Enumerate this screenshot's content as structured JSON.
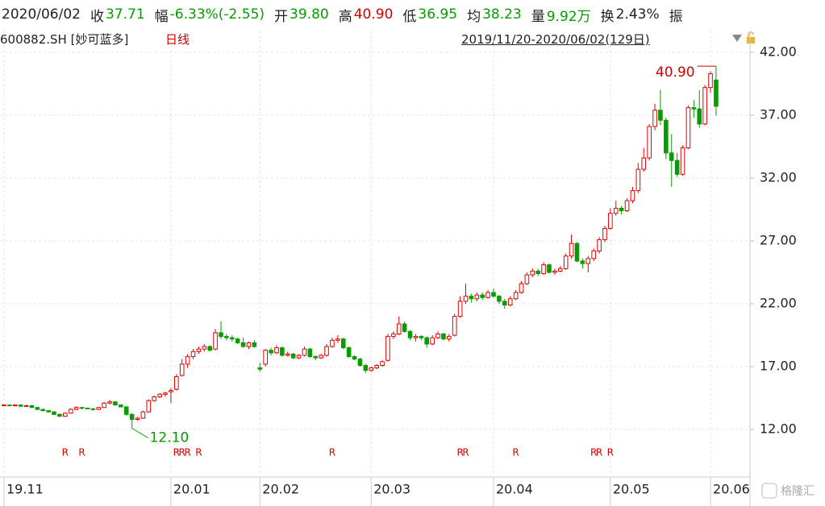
{
  "header": {
    "date": "2020/06/02",
    "items": [
      {
        "label": "收",
        "value": "37.71",
        "color": "#079c00"
      },
      {
        "label": "幅",
        "value": "-6.33%(-2.55)",
        "color": "#079c00"
      },
      {
        "label": "开",
        "value": "39.80",
        "color": "#079c00"
      },
      {
        "label": "高",
        "value": "40.90",
        "color": "#d40000"
      },
      {
        "label": "低",
        "value": "36.95",
        "color": "#079c00"
      },
      {
        "label": "均",
        "value": "38.23",
        "color": "#079c00"
      },
      {
        "label": "量",
        "value": "9.92万",
        "color": "#079c00"
      },
      {
        "label": "换",
        "value": "2.43%",
        "color": "#222222"
      },
      {
        "label": "振",
        "value": "",
        "color": "#222222"
      }
    ]
  },
  "stock": {
    "code": "600882.SH [妙可蓝多]",
    "period": "日线",
    "range": "2019/11/20-2020/06/02(129日)"
  },
  "watermark": "格隆汇",
  "chart_data": {
    "type": "candlestick",
    "up_color": "#e60000",
    "down_color": "#079c00",
    "xlim": [
      -0.72,
      134.1
    ],
    "ylim": [
      8.35,
      43.73
    ],
    "xticks": [
      {
        "value": 0,
        "label": "19.11"
      },
      {
        "value": 30,
        "label": "20.01"
      },
      {
        "value": 46,
        "label": "20.02"
      },
      {
        "value": 66,
        "label": "20.03"
      },
      {
        "value": 88,
        "label": "20.04"
      },
      {
        "value": 109,
        "label": "20.05"
      },
      {
        "value": 127,
        "label": "20.06"
      }
    ],
    "yticks": [
      {
        "value": 12,
        "label": "12.00"
      },
      {
        "value": 17,
        "label": "17.00"
      },
      {
        "value": 22,
        "label": "22.00"
      },
      {
        "value": 27,
        "label": "27.00"
      },
      {
        "value": 32,
        "label": "32.00"
      },
      {
        "value": 37,
        "label": "37.00"
      },
      {
        "value": 42,
        "label": "42.00"
      }
    ],
    "grid": true,
    "annotations": [
      {
        "label": "40.90",
        "x": 128,
        "value": 40.9,
        "color": "#d40000"
      },
      {
        "label": "12.10",
        "x": 23,
        "value": 12.1,
        "color": "#079c00"
      }
    ],
    "markers": {
      "label": "R",
      "x": [
        11,
        14,
        31,
        32,
        33,
        35,
        59,
        82,
        83,
        92,
        106,
        107,
        109
      ]
    },
    "candles": [
      [
        13.9,
        14.0,
        13.85,
        13.95
      ],
      [
        13.95,
        14.0,
        13.85,
        13.9
      ],
      [
        13.9,
        14.0,
        13.85,
        13.95
      ],
      [
        13.95,
        14.0,
        13.8,
        13.85
      ],
      [
        13.85,
        13.95,
        13.8,
        13.9
      ],
      [
        13.9,
        13.95,
        13.7,
        13.75
      ],
      [
        13.75,
        13.8,
        13.55,
        13.6
      ],
      [
        13.6,
        13.65,
        13.45,
        13.5
      ],
      [
        13.5,
        13.55,
        13.35,
        13.4
      ],
      [
        13.4,
        13.45,
        13.15,
        13.2
      ],
      [
        13.2,
        13.3,
        13.0,
        13.05
      ],
      [
        13.05,
        13.35,
        13.0,
        13.3
      ],
      [
        13.3,
        13.7,
        13.25,
        13.6
      ],
      [
        13.6,
        13.85,
        13.55,
        13.75
      ],
      [
        13.75,
        13.8,
        13.6,
        13.7
      ],
      [
        13.7,
        13.75,
        13.6,
        13.65
      ],
      [
        13.65,
        13.7,
        13.5,
        13.6
      ],
      [
        13.6,
        13.8,
        13.55,
        13.75
      ],
      [
        13.75,
        14.2,
        13.7,
        14.1
      ],
      [
        14.1,
        14.35,
        14.0,
        14.2
      ],
      [
        14.2,
        14.25,
        13.9,
        13.95
      ],
      [
        13.95,
        14.0,
        13.75,
        13.8
      ],
      [
        13.8,
        13.85,
        13.1,
        13.2
      ],
      [
        13.2,
        13.3,
        12.1,
        12.8
      ],
      [
        12.8,
        13.0,
        12.7,
        12.9
      ],
      [
        12.9,
        13.5,
        12.85,
        13.4
      ],
      [
        13.4,
        14.4,
        13.35,
        14.3
      ],
      [
        14.3,
        14.7,
        14.2,
        14.6
      ],
      [
        14.6,
        14.9,
        14.5,
        14.8
      ],
      [
        14.8,
        15.0,
        14.6,
        14.9
      ],
      [
        15.0,
        15.3,
        14.1,
        15.1
      ],
      [
        15.2,
        16.4,
        15.1,
        16.2
      ],
      [
        16.3,
        17.6,
        16.2,
        17.2
      ],
      [
        17.2,
        18.0,
        16.9,
        17.8
      ],
      [
        17.8,
        18.4,
        17.6,
        18.2
      ],
      [
        18.2,
        18.6,
        18.0,
        18.4
      ],
      [
        18.4,
        18.8,
        18.2,
        18.6
      ],
      [
        18.6,
        18.7,
        18.2,
        18.3
      ],
      [
        18.4,
        20.0,
        18.3,
        19.7
      ],
      [
        19.7,
        20.6,
        19.2,
        19.4
      ],
      [
        19.4,
        19.6,
        19.1,
        19.3
      ],
      [
        19.3,
        19.5,
        19.0,
        19.2
      ],
      [
        19.2,
        19.3,
        18.8,
        18.9
      ],
      [
        18.9,
        19.3,
        18.5,
        18.6
      ],
      [
        18.6,
        19.0,
        18.4,
        18.9
      ],
      [
        18.9,
        19.1,
        18.5,
        18.6
      ],
      [
        16.9,
        17.3,
        16.6,
        16.8
      ],
      [
        17.2,
        18.4,
        17.0,
        18.3
      ],
      [
        18.3,
        18.5,
        17.9,
        18.1
      ],
      [
        18.1,
        18.7,
        18.0,
        18.5
      ],
      [
        18.5,
        18.6,
        17.8,
        17.9
      ],
      [
        17.9,
        18.2,
        17.8,
        18.0
      ],
      [
        18.0,
        18.1,
        17.6,
        17.7
      ],
      [
        17.7,
        18.0,
        17.6,
        17.9
      ],
      [
        17.9,
        18.6,
        17.8,
        18.4
      ],
      [
        18.4,
        18.5,
        17.7,
        17.8
      ],
      [
        17.8,
        17.9,
        17.5,
        17.7
      ],
      [
        17.7,
        18.0,
        17.6,
        17.9
      ],
      [
        17.9,
        18.8,
        17.8,
        18.6
      ],
      [
        18.6,
        19.3,
        18.5,
        19.1
      ],
      [
        19.1,
        19.5,
        18.9,
        19.2
      ],
      [
        19.2,
        19.3,
        18.4,
        18.5
      ],
      [
        18.5,
        18.6,
        17.7,
        17.8
      ],
      [
        17.8,
        17.9,
        17.5,
        17.6
      ],
      [
        17.6,
        17.7,
        17.0,
        17.1
      ],
      [
        17.1,
        17.2,
        16.5,
        16.7
      ],
      [
        16.7,
        17.0,
        16.6,
        16.9
      ],
      [
        16.9,
        17.2,
        16.8,
        17.1
      ],
      [
        17.1,
        17.5,
        17.0,
        17.4
      ],
      [
        17.5,
        19.6,
        17.4,
        19.4
      ],
      [
        19.4,
        19.8,
        19.2,
        19.6
      ],
      [
        19.6,
        21.0,
        19.5,
        20.4
      ],
      [
        20.4,
        20.6,
        19.7,
        19.8
      ],
      [
        19.8,
        19.9,
        19.1,
        19.3
      ],
      [
        19.3,
        19.6,
        19.0,
        19.4
      ],
      [
        19.4,
        19.5,
        19.1,
        19.3
      ],
      [
        19.3,
        19.4,
        18.5,
        18.8
      ],
      [
        18.8,
        19.5,
        18.7,
        19.3
      ],
      [
        19.3,
        19.8,
        19.2,
        19.6
      ],
      [
        19.6,
        19.7,
        19.1,
        19.2
      ],
      [
        19.2,
        19.6,
        19.0,
        19.4
      ],
      [
        19.5,
        21.2,
        19.4,
        21.0
      ],
      [
        21.0,
        22.6,
        20.9,
        22.2
      ],
      [
        22.2,
        23.6,
        22.0,
        22.6
      ],
      [
        22.6,
        22.8,
        22.1,
        22.4
      ],
      [
        22.4,
        22.9,
        22.2,
        22.7
      ],
      [
        22.7,
        22.9,
        22.3,
        22.5
      ],
      [
        22.5,
        23.1,
        22.4,
        22.9
      ],
      [
        22.9,
        23.2,
        22.5,
        22.6
      ],
      [
        22.6,
        22.7,
        22.0,
        22.2
      ],
      [
        22.2,
        22.4,
        21.6,
        21.9
      ],
      [
        21.9,
        22.6,
        21.8,
        22.4
      ],
      [
        22.4,
        23.1,
        22.3,
        22.9
      ],
      [
        22.9,
        23.8,
        22.8,
        23.6
      ],
      [
        23.6,
        24.5,
        23.5,
        24.3
      ],
      [
        24.3,
        24.8,
        24.1,
        24.6
      ],
      [
        24.6,
        24.8,
        24.2,
        24.4
      ],
      [
        24.4,
        25.3,
        24.3,
        25.1
      ],
      [
        25.1,
        25.2,
        24.4,
        24.5
      ],
      [
        24.5,
        24.8,
        24.3,
        24.6
      ],
      [
        24.6,
        25.0,
        24.5,
        24.8
      ],
      [
        24.8,
        26.0,
        24.7,
        25.8
      ],
      [
        25.8,
        27.5,
        25.6,
        26.8
      ],
      [
        26.8,
        26.9,
        25.3,
        25.4
      ],
      [
        25.4,
        25.6,
        24.8,
        25.2
      ],
      [
        25.2,
        25.8,
        24.5,
        25.6
      ],
      [
        25.6,
        26.4,
        25.4,
        26.2
      ],
      [
        26.2,
        27.3,
        26.0,
        27.1
      ],
      [
        27.1,
        28.2,
        26.9,
        28.0
      ],
      [
        28.0,
        29.6,
        27.9,
        29.2
      ],
      [
        29.2,
        30.2,
        29.0,
        29.6
      ],
      [
        29.6,
        29.8,
        29.1,
        29.4
      ],
      [
        29.4,
        30.4,
        29.3,
        30.2
      ],
      [
        30.2,
        31.3,
        30.0,
        31.0
      ],
      [
        31.0,
        33.2,
        30.8,
        32.7
      ],
      [
        32.7,
        34.4,
        32.5,
        33.6
      ],
      [
        33.6,
        36.3,
        33.4,
        36.1
      ],
      [
        36.1,
        37.9,
        35.8,
        37.4
      ],
      [
        37.4,
        39.0,
        36.2,
        36.6
      ],
      [
        36.6,
        36.8,
        33.5,
        34.0
      ],
      [
        34.0,
        35.5,
        31.3,
        33.4
      ],
      [
        33.4,
        34.0,
        32.1,
        32.3
      ],
      [
        32.3,
        34.6,
        32.2,
        34.4
      ],
      [
        34.4,
        37.8,
        34.3,
        37.6
      ],
      [
        37.6,
        38.2,
        36.8,
        37.5
      ],
      [
        37.5,
        39.0,
        36.0,
        36.3
      ],
      [
        36.3,
        39.4,
        36.2,
        39.2
      ],
      [
        39.2,
        40.5,
        38.8,
        40.3
      ],
      [
        39.8,
        40.9,
        36.95,
        37.71
      ]
    ]
  }
}
